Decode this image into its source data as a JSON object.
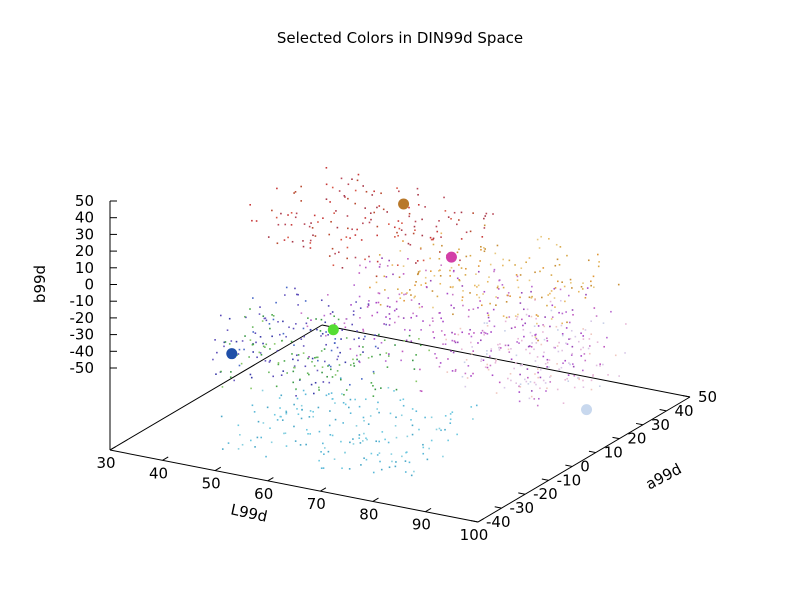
{
  "chart_data": {
    "type": "scatter3d",
    "title": "Selected Colors in DIN99d Space",
    "xlabel": "L99d",
    "ylabel": "a99d",
    "zlabel": "b99d",
    "xlim": [
      30,
      100
    ],
    "ylim": [
      -40,
      50
    ],
    "zlim": [
      -50,
      50
    ],
    "x_ticks": [
      "30",
      "40",
      "50",
      "60",
      "70",
      "80",
      "90",
      "100"
    ],
    "y_ticks": [
      "-40",
      "-30",
      "-20",
      "-10",
      "0",
      "10",
      "20",
      "30",
      "40",
      "50"
    ],
    "z_ticks": [
      "50",
      "40",
      "30",
      "20",
      "10",
      "0",
      "-10",
      "-20",
      "-30",
      "-40",
      "-50"
    ],
    "grid": false,
    "legend": "none",
    "selected_points": [
      {
        "L": 33,
        "a": 5,
        "b": -27,
        "color": "#1f4fa8"
      },
      {
        "L": 50,
        "a": 40,
        "b": 44,
        "color": "#b8782a"
      },
      {
        "L": 60,
        "a": 38,
        "b": 20,
        "color": "#d33fa8"
      },
      {
        "L": 68,
        "a": -30,
        "b": 38,
        "color": "#55dd33"
      },
      {
        "L": 96,
        "a": 15,
        "b": -30,
        "color": "#c8d8ee"
      }
    ],
    "cloud": [
      {
        "name": "blue-violet",
        "L": [
          30,
          55
        ],
        "a": [
          -5,
          30
        ],
        "b": [
          -40,
          0
        ],
        "n": 130,
        "colors": [
          "#3a3aa8",
          "#5a4ab8",
          "#4a6ac8",
          "#6a5ac0"
        ]
      },
      {
        "name": "cyan",
        "L": [
          50,
          85
        ],
        "a": [
          -40,
          -5
        ],
        "b": [
          -40,
          -15
        ],
        "n": 180,
        "colors": [
          "#5ab8d8",
          "#6cc8e0",
          "#4aa8c8",
          "#88d0e0"
        ]
      },
      {
        "name": "green",
        "L": [
          45,
          80
        ],
        "a": [
          -40,
          -10
        ],
        "b": [
          0,
          30
        ],
        "n": 110,
        "colors": [
          "#4aa84a",
          "#6ab860",
          "#88c868",
          "#3a9848"
        ]
      },
      {
        "name": "purple-magenta",
        "L": [
          45,
          90
        ],
        "a": [
          5,
          45
        ],
        "b": [
          -30,
          15
        ],
        "n": 260,
        "colors": [
          "#a848c8",
          "#c058c0",
          "#9848b8",
          "#b868d0",
          "#c878c8"
        ]
      },
      {
        "name": "red-brown",
        "L": [
          30,
          65
        ],
        "a": [
          15,
          50
        ],
        "b": [
          20,
          50
        ],
        "n": 160,
        "colors": [
          "#c83838",
          "#b84858",
          "#a83848",
          "#d85848",
          "#b84a30"
        ]
      },
      {
        "name": "orange-yellow",
        "L": [
          60,
          95
        ],
        "a": [
          0,
          35
        ],
        "b": [
          20,
          50
        ],
        "n": 170,
        "colors": [
          "#e09838",
          "#d8a848",
          "#e8b860",
          "#c89038",
          "#e8c880"
        ]
      },
      {
        "name": "pale",
        "L": [
          80,
          100
        ],
        "a": [
          -10,
          25
        ],
        "b": [
          -15,
          25
        ],
        "n": 160,
        "colors": [
          "#e8b8d8",
          "#d8c8e8",
          "#f0c8c0",
          "#c8d0e8",
          "#e0c0e0"
        ]
      }
    ]
  }
}
